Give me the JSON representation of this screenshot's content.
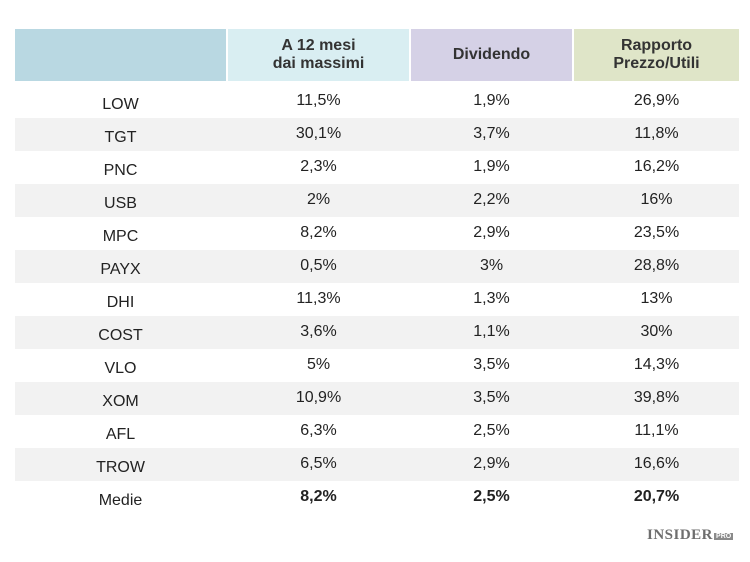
{
  "chart_data": {
    "type": "table",
    "columns": [
      "",
      "A 12 mesi\ndai massimi",
      "Dividendo",
      "Rapporto\nPrezzo/Utili"
    ],
    "header_colors": [
      "#b9d8e2",
      "#d9eef2",
      "#d5d1e6",
      "#dfe5c8"
    ],
    "rows": [
      {
        "ticker": "LOW",
        "from_high": "11,5%",
        "dividend": "1,9%",
        "pe": "26,9%"
      },
      {
        "ticker": "TGT",
        "from_high": "30,1%",
        "dividend": "3,7%",
        "pe": "11,8%"
      },
      {
        "ticker": "PNC",
        "from_high": "2,3%",
        "dividend": "1,9%",
        "pe": "16,2%"
      },
      {
        "ticker": "USB",
        "from_high": "2%",
        "dividend": "2,2%",
        "pe": "16%"
      },
      {
        "ticker": "MPC",
        "from_high": "8,2%",
        "dividend": "2,9%",
        "pe": "23,5%"
      },
      {
        "ticker": "PAYX",
        "from_high": "0,5%",
        "dividend": "3%",
        "pe": "28,8%"
      },
      {
        "ticker": "DHI",
        "from_high": "11,3%",
        "dividend": "1,3%",
        "pe": "13%"
      },
      {
        "ticker": "COST",
        "from_high": "3,6%",
        "dividend": "1,1%",
        "pe": "30%"
      },
      {
        "ticker": "VLO",
        "from_high": "5%",
        "dividend": "3,5%",
        "pe": "14,3%"
      },
      {
        "ticker": "XOM",
        "from_high": "10,9%",
        "dividend": "3,5%",
        "pe": "39,8%"
      },
      {
        "ticker": "AFL",
        "from_high": "6,3%",
        "dividend": "2,5%",
        "pe": "11,1%"
      },
      {
        "ticker": "TROW",
        "from_high": "6,5%",
        "dividend": "2,9%",
        "pe": "16,6%"
      }
    ],
    "averages": {
      "label": "Medie",
      "from_high": "8,2%",
      "dividend": "2,5%",
      "pe": "20,7%"
    }
  },
  "logo": {
    "main": "INSIDER",
    "suffix": "PRO"
  }
}
